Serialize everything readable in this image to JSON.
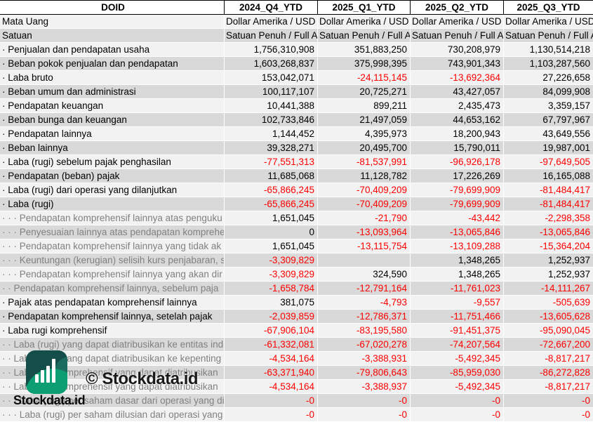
{
  "table": {
    "corner_title": "DOID",
    "columns": [
      "2024_Q4_YTD",
      "2025_Q1_YTD",
      "2025_Q2_YTD",
      "2025_Q3_YTD"
    ],
    "info_rows": [
      {
        "label": "Mata Uang",
        "values": [
          "Dollar Amerika / USD",
          "Dollar Amerika / USD",
          "Dollar Amerika / USD",
          "Dollar Amerika / USD"
        ]
      },
      {
        "label": "Satuan",
        "values": [
          "Satuan Penuh / Full A",
          "Satuan Penuh / Full A",
          "Satuan Penuh / Full A",
          "Satuan Penuh / Full A"
        ]
      }
    ],
    "rows": [
      {
        "label": "· Penjualan dan pendapatan usaha",
        "dim": false,
        "values": [
          "1,756,310,908",
          "351,883,250",
          "730,208,979",
          "1,130,514,218"
        ]
      },
      {
        "label": "· Beban pokok penjualan dan pendapatan",
        "dim": false,
        "values": [
          "1,603,268,837",
          "375,998,395",
          "743,901,343",
          "1,103,287,560"
        ]
      },
      {
        "label": "· Laba bruto",
        "dim": false,
        "values": [
          "153,042,071",
          "-24,115,145",
          "-13,692,364",
          "27,226,658"
        ]
      },
      {
        "label": "· Beban umum dan administrasi",
        "dim": false,
        "values": [
          "100,117,107",
          "20,725,271",
          "43,427,057",
          "84,099,908"
        ]
      },
      {
        "label": "· Pendapatan keuangan",
        "dim": false,
        "values": [
          "10,441,388",
          "899,211",
          "2,435,473",
          "3,359,157"
        ]
      },
      {
        "label": "· Beban bunga dan keuangan",
        "dim": false,
        "values": [
          "102,733,846",
          "21,497,059",
          "44,653,162",
          "67,797,967"
        ]
      },
      {
        "label": "· Pendapatan lainnya",
        "dim": false,
        "values": [
          "1,144,452",
          "4,395,973",
          "18,200,943",
          "43,649,556"
        ]
      },
      {
        "label": "· Beban lainnya",
        "dim": false,
        "values": [
          "39,328,271",
          "20,495,700",
          "15,790,011",
          "19,987,001"
        ]
      },
      {
        "label": "· Laba (rugi) sebelum pajak penghasilan",
        "dim": false,
        "values": [
          "-77,551,313",
          "-81,537,991",
          "-96,926,178",
          "-97,649,505"
        ]
      },
      {
        "label": "· Pendapatan (beban) pajak",
        "dim": false,
        "values": [
          "11,685,068",
          "11,128,782",
          "17,226,269",
          "16,165,088"
        ]
      },
      {
        "label": "· Laba (rugi) dari operasi yang dilanjutkan",
        "dim": false,
        "values": [
          "-65,866,245",
          "-70,409,209",
          "-79,699,909",
          "-81,484,417"
        ]
      },
      {
        "label": "· Laba (rugi)",
        "dim": false,
        "values": [
          "-65,866,245",
          "-70,409,209",
          "-79,699,909",
          "-81,484,417"
        ]
      },
      {
        "label": "· · · Pendapatan komprehensif lainnya atas penguku",
        "dim": true,
        "values": [
          "1,651,045",
          "-21,790",
          "-43,442",
          "-2,298,358"
        ]
      },
      {
        "label": "· · · Penyesuaian lainnya atas pendapatan komprehen",
        "dim": true,
        "values": [
          "0",
          "-13,093,964",
          "-13,065,846",
          "-13,065,846"
        ]
      },
      {
        "label": "· · · Pendapatan komprehensif lainnya yang tidak ak",
        "dim": true,
        "values": [
          "1,651,045",
          "-13,115,754",
          "-13,109,288",
          "-15,364,204"
        ]
      },
      {
        "label": "· · · Keuntungan (kerugian) selisih kurs penjabaran, s",
        "dim": true,
        "values": [
          "-3,309,829",
          "",
          "1,348,265",
          "1,252,937"
        ]
      },
      {
        "label": "· · · Pendapatan komprehensif lainnya yang akan dir",
        "dim": true,
        "values": [
          "-3,309,829",
          "324,590",
          "1,348,265",
          "1,252,937"
        ]
      },
      {
        "label": "· · Pendapatan komprehensif lainnya, sebelum paja",
        "dim": true,
        "values": [
          "-1,658,784",
          "-12,791,164",
          "-11,761,023",
          "-14,111,267"
        ]
      },
      {
        "label": "· Pajak atas pendapatan komprehensif lainnya",
        "dim": false,
        "values": [
          "381,075",
          "-4,793",
          "-9,557",
          "-505,639"
        ]
      },
      {
        "label": "· Pendapatan komprehensif lainnya, setelah pajak",
        "dim": false,
        "values": [
          "-2,039,859",
          "-12,786,371",
          "-11,751,466",
          "-13,605,628"
        ]
      },
      {
        "label": "· Laba rugi komprehensif",
        "dim": false,
        "values": [
          "-67,906,104",
          "-83,195,580",
          "-91,451,375",
          "-95,090,045"
        ]
      },
      {
        "label": "· · Laba (rugi) yang dapat diatribusikan ke entitas ind",
        "dim": true,
        "values": [
          "-61,332,081",
          "-67,020,278",
          "-74,207,564",
          "-72,667,200"
        ]
      },
      {
        "label": "· · Laba (rugi) yang dapat diatribusikan ke kepenting",
        "dim": true,
        "values": [
          "-4,534,164",
          "-3,388,931",
          "-5,492,345",
          "-8,817,217"
        ]
      },
      {
        "label": "· · Laba rugi komprehensif yang dapat diatribusikan",
        "dim": true,
        "values": [
          "-63,371,940",
          "-79,806,643",
          "-85,959,030",
          "-86,272,828"
        ]
      },
      {
        "label": "· · Laba rugi komprehensif yang dapat diatribusikan",
        "dim": true,
        "values": [
          "-4,534,164",
          "-3,388,937",
          "-5,492,345",
          "-8,817,217"
        ]
      },
      {
        "label": "· · · Laba (rugi) per saham dasar dari operasi yang dil",
        "dim": true,
        "values": [
          "-0",
          "-0",
          "-0",
          "-0"
        ]
      },
      {
        "label": "· · · Laba (rugi) per saham dilusian dari operasi yang",
        "dim": true,
        "values": [
          "-0",
          "-0",
          "-0",
          "-0"
        ]
      }
    ]
  },
  "watermark": {
    "brand_text": "Stockdata.id",
    "copyright_text": "© Stockdata.id"
  },
  "colors": {
    "negative": "#FF0000",
    "row_light": "#F2F2F2",
    "row_dark": "#D9D9D9",
    "dim_label": "#808080",
    "header_border": "#000000",
    "logo_dark_teal": "#134E4A",
    "logo_mid_teal": "#1C6B5F",
    "logo_green": "#0D9E74"
  }
}
